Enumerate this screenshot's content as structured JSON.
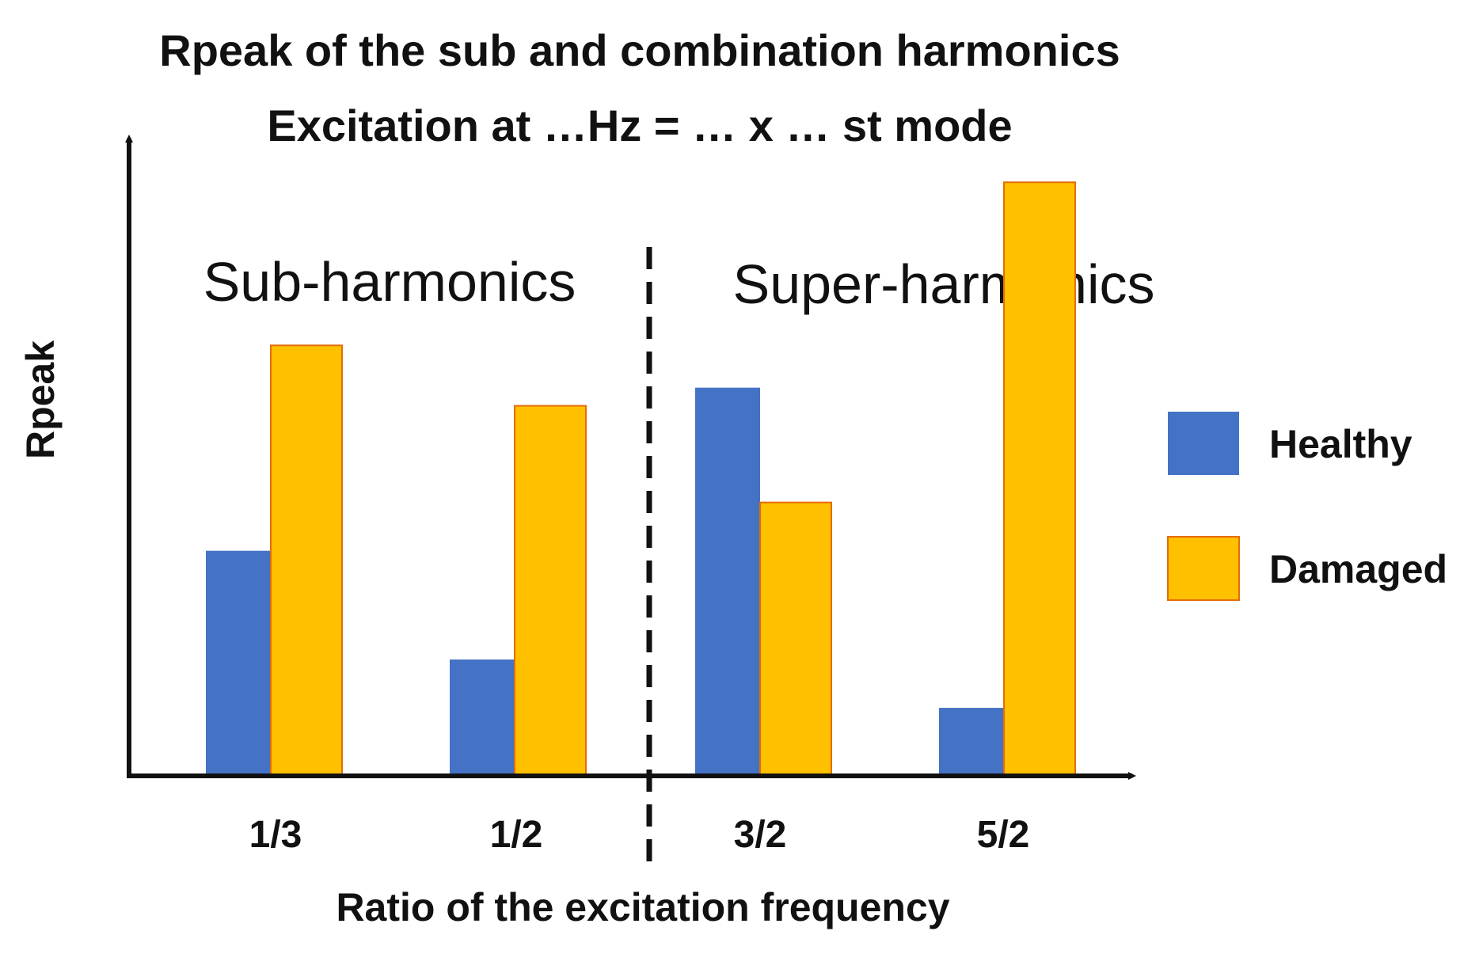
{
  "chart_data": {
    "type": "bar",
    "title": "Rpeak of the sub and combination harmonics",
    "subtitle": "Excitation at …Hz = … x … st mode",
    "xlabel": "Ratio of the excitation frequency",
    "ylabel": "Rpeak",
    "categories": [
      "1/3",
      "1/2",
      "3/2",
      "5/2"
    ],
    "series": [
      {
        "name": "Healthy",
        "color": "#4472C4",
        "values": [
          37,
          19,
          64,
          11
        ]
      },
      {
        "name": "Damaged",
        "color": "#FFC000",
        "values": [
          71,
          61,
          45,
          98
        ]
      }
    ],
    "ylim": [
      0,
      100
    ],
    "regions": [
      "Sub-harmonics",
      "Super-harmonics"
    ],
    "divider": "dashed vertical line between 1/2 and 3/2",
    "legend_position": "right",
    "grid": false,
    "damaged_border_color": "#E46C0A",
    "axis_color": "#111111"
  }
}
